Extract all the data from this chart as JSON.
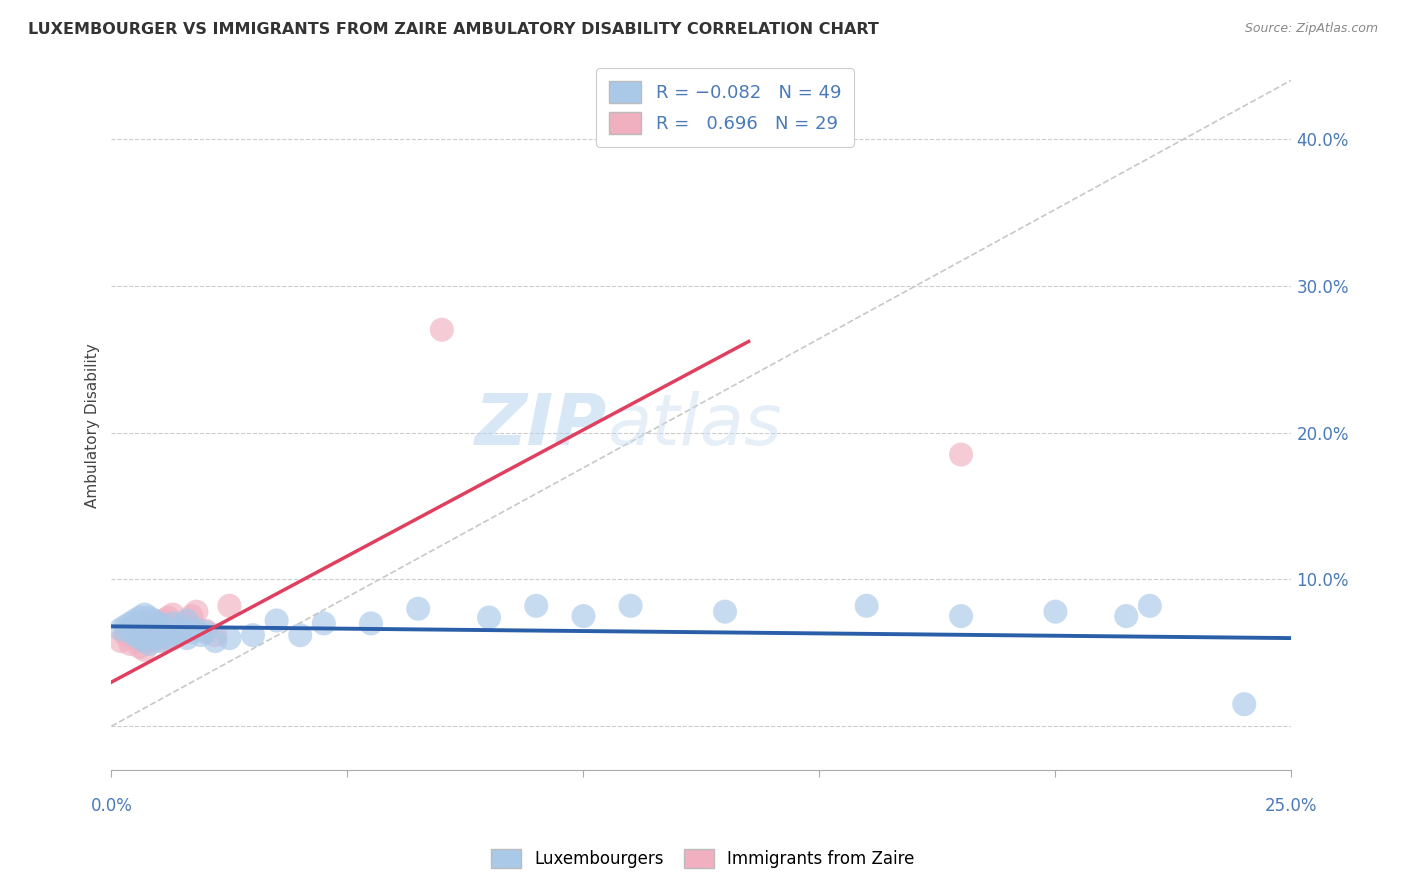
{
  "title": "LUXEMBOURGER VS IMMIGRANTS FROM ZAIRE AMBULATORY DISABILITY CORRELATION CHART",
  "source": "Source: ZipAtlas.com",
  "ylabel": "Ambulatory Disability",
  "yaxis_ticks": [
    0.0,
    0.1,
    0.2,
    0.3,
    0.4
  ],
  "yaxis_labels": [
    "",
    "10.0%",
    "20.0%",
    "30.0%",
    "40.0%"
  ],
  "xmin": 0.0,
  "xmax": 0.25,
  "ymin": -0.03,
  "ymax": 0.44,
  "R_blue": -0.082,
  "N_blue": 49,
  "R_pink": 0.696,
  "N_pink": 29,
  "blue_color": "#aac8e8",
  "blue_line_color": "#2a5ea8",
  "pink_color": "#f0b0c0",
  "pink_line_color": "#e04060",
  "legend_label_blue": "Luxembourgers",
  "legend_label_pink": "Immigrants from Zaire",
  "watermark_zip": "ZIP",
  "watermark_atlas": "atlas",
  "blue_x": [
    0.002,
    0.003,
    0.004,
    0.004,
    0.005,
    0.005,
    0.006,
    0.006,
    0.007,
    0.007,
    0.008,
    0.008,
    0.009,
    0.009,
    0.01,
    0.01,
    0.011,
    0.011,
    0.012,
    0.012,
    0.013,
    0.013,
    0.014,
    0.015,
    0.016,
    0.016,
    0.017,
    0.018,
    0.019,
    0.02,
    0.022,
    0.025,
    0.03,
    0.035,
    0.04,
    0.045,
    0.055,
    0.065,
    0.08,
    0.09,
    0.1,
    0.11,
    0.13,
    0.16,
    0.18,
    0.2,
    0.215,
    0.22,
    0.24
  ],
  "blue_y": [
    0.066,
    0.068,
    0.064,
    0.07,
    0.062,
    0.072,
    0.06,
    0.074,
    0.058,
    0.076,
    0.056,
    0.074,
    0.06,
    0.072,
    0.058,
    0.07,
    0.062,
    0.068,
    0.06,
    0.066,
    0.064,
    0.07,
    0.062,
    0.068,
    0.06,
    0.072,
    0.064,
    0.066,
    0.062,
    0.064,
    0.058,
    0.06,
    0.062,
    0.072,
    0.062,
    0.07,
    0.07,
    0.08,
    0.074,
    0.082,
    0.075,
    0.082,
    0.078,
    0.082,
    0.075,
    0.078,
    0.075,
    0.082,
    0.015
  ],
  "pink_x": [
    0.002,
    0.003,
    0.004,
    0.005,
    0.006,
    0.006,
    0.007,
    0.007,
    0.008,
    0.008,
    0.009,
    0.01,
    0.01,
    0.011,
    0.011,
    0.012,
    0.012,
    0.013,
    0.013,
    0.014,
    0.015,
    0.016,
    0.017,
    0.018,
    0.02,
    0.022,
    0.025,
    0.07,
    0.18
  ],
  "pink_y": [
    0.058,
    0.062,
    0.056,
    0.06,
    0.054,
    0.064,
    0.052,
    0.066,
    0.058,
    0.068,
    0.062,
    0.06,
    0.07,
    0.058,
    0.072,
    0.062,
    0.074,
    0.06,
    0.076,
    0.065,
    0.068,
    0.07,
    0.075,
    0.078,
    0.065,
    0.062,
    0.082,
    0.27,
    0.185
  ],
  "blue_line_x0": 0.0,
  "blue_line_x1": 0.25,
  "blue_line_y0": 0.068,
  "blue_line_y1": 0.06,
  "pink_line_x0": 0.0,
  "pink_line_x1": 0.135,
  "pink_line_y0": 0.03,
  "pink_line_y1": 0.262
}
